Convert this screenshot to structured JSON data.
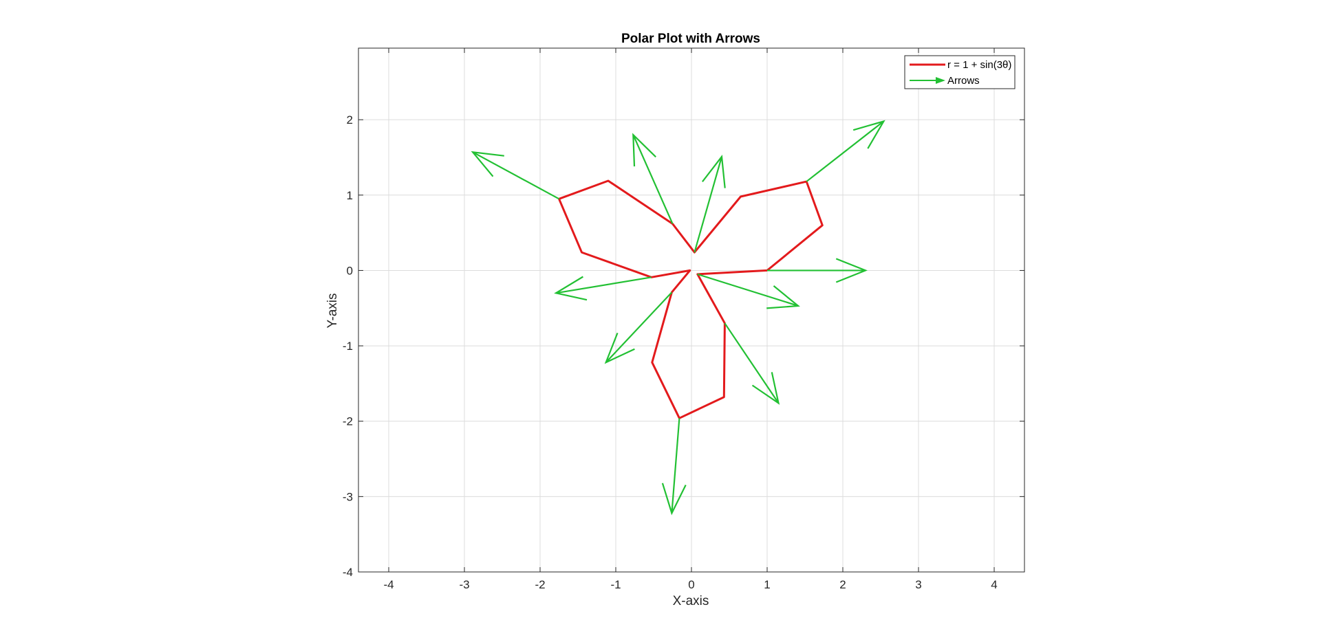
{
  "chart_data": {
    "type": "line",
    "title": "Polar Plot with Arrows",
    "xlabel": "X-axis",
    "ylabel": "Y-axis",
    "xlim": [
      -4.4,
      4.4
    ],
    "ylim": [
      -4,
      2.95
    ],
    "xticks": [
      -4,
      -3,
      -2,
      -1,
      0,
      1,
      2,
      3,
      4
    ],
    "yticks": [
      -4,
      -3,
      -2,
      -1,
      0,
      1,
      2
    ],
    "xtick_labels": [
      "-4",
      "-3",
      "-2",
      "-1",
      "0",
      "1",
      "2",
      "3",
      "4"
    ],
    "ytick_labels": [
      "-4",
      "-3",
      "-2",
      "-1",
      "0",
      "1",
      "2"
    ],
    "grid": true,
    "legend_position": "top-right",
    "series": [
      {
        "name": "r = 1 + sin(3θ)",
        "kind": "line",
        "color": "#e31a1c",
        "x": [
          1.0,
          1.73,
          1.52,
          0.65,
          0.04,
          -0.25,
          -1.1,
          -1.75,
          -1.45,
          -0.53,
          -0.02,
          -0.26,
          -0.52,
          -0.16,
          0.43,
          0.44,
          0.08,
          1.0
        ],
        "y": [
          0.0,
          0.6,
          1.18,
          0.98,
          0.24,
          0.62,
          1.19,
          0.95,
          0.24,
          -0.09,
          0.0,
          -0.29,
          -1.22,
          -1.96,
          -1.68,
          -0.7,
          -0.05,
          0.0
        ]
      },
      {
        "name": "Arrows",
        "kind": "quiver",
        "color": "#22c033",
        "arrows": [
          {
            "x": 1.0,
            "y": 0.0,
            "u": 1.3,
            "v": 0.0
          },
          {
            "x": 1.52,
            "y": 1.18,
            "u": 1.02,
            "v": 0.8
          },
          {
            "x": 0.04,
            "y": 0.24,
            "u": 0.36,
            "v": 1.27
          },
          {
            "x": -0.25,
            "y": 0.62,
            "u": -0.52,
            "v": 1.18
          },
          {
            "x": -1.75,
            "y": 0.95,
            "u": -1.14,
            "v": 0.62
          },
          {
            "x": -0.53,
            "y": -0.09,
            "u": -1.26,
            "v": -0.21
          },
          {
            "x": -0.26,
            "y": -0.29,
            "u": -0.87,
            "v": -0.93
          },
          {
            "x": -0.16,
            "y": -1.96,
            "u": -0.1,
            "v": -1.26
          },
          {
            "x": 0.44,
            "y": -0.7,
            "u": 0.71,
            "v": -1.06
          },
          {
            "x": 0.08,
            "y": -0.05,
            "u": 1.33,
            "v": -0.42
          }
        ]
      }
    ]
  }
}
